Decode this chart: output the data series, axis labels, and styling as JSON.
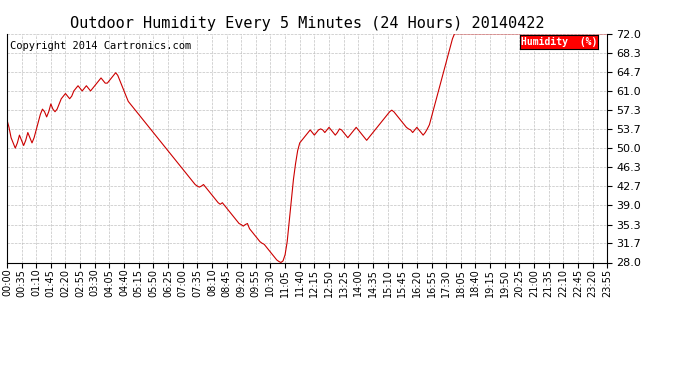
{
  "title": "Outdoor Humidity Every 5 Minutes (24 Hours) 20140422",
  "copyright": "Copyright 2014 Cartronics.com",
  "legend_label": "Humidity  (%)",
  "legend_bg": "#ff0000",
  "legend_text_color": "#ffffff",
  "line_color": "#cc0000",
  "bg_color": "#ffffff",
  "plot_bg_color": "#ffffff",
  "grid_color": "#bbbbbb",
  "ylim": [
    28.0,
    72.0
  ],
  "yticks": [
    28.0,
    31.7,
    35.3,
    39.0,
    42.7,
    46.3,
    50.0,
    53.7,
    57.3,
    61.0,
    64.7,
    68.3,
    72.0
  ],
  "title_fontsize": 11,
  "copyright_fontsize": 7.5,
  "tick_fontsize": 7,
  "humidity_data": [
    55.5,
    54.0,
    52.0,
    51.0,
    50.0,
    51.0,
    52.5,
    51.5,
    50.5,
    51.5,
    53.0,
    52.0,
    51.0,
    52.0,
    53.5,
    55.0,
    56.5,
    57.5,
    57.0,
    56.0,
    57.0,
    58.5,
    57.5,
    57.0,
    57.5,
    58.5,
    59.5,
    60.0,
    60.5,
    60.0,
    59.5,
    60.0,
    61.0,
    61.5,
    62.0,
    61.5,
    61.0,
    61.5,
    62.0,
    61.5,
    61.0,
    61.5,
    62.0,
    62.5,
    63.0,
    63.5,
    63.0,
    62.5,
    62.5,
    63.0,
    63.5,
    64.0,
    64.5,
    64.0,
    63.0,
    62.0,
    61.0,
    60.0,
    59.0,
    58.5,
    58.0,
    57.5,
    57.0,
    56.5,
    56.0,
    55.5,
    55.0,
    54.5,
    54.0,
    53.5,
    53.0,
    52.5,
    52.0,
    51.5,
    51.0,
    50.5,
    50.0,
    49.5,
    49.0,
    48.5,
    48.0,
    47.5,
    47.0,
    46.5,
    46.0,
    45.5,
    45.0,
    44.5,
    44.0,
    43.5,
    43.0,
    42.7,
    42.5,
    42.7,
    43.0,
    42.5,
    42.0,
    41.5,
    41.0,
    40.5,
    40.0,
    39.5,
    39.2,
    39.5,
    39.0,
    38.5,
    38.0,
    37.5,
    37.0,
    36.5,
    36.0,
    35.5,
    35.3,
    35.0,
    35.3,
    35.5,
    34.5,
    34.0,
    33.5,
    33.0,
    32.5,
    32.0,
    31.7,
    31.5,
    31.0,
    30.5,
    30.0,
    29.5,
    29.0,
    28.5,
    28.2,
    28.0,
    28.3,
    29.5,
    32.0,
    36.0,
    40.0,
    44.0,
    47.0,
    49.5,
    51.0,
    51.5,
    52.0,
    52.5,
    53.0,
    53.5,
    53.0,
    52.5,
    53.0,
    53.5,
    53.7,
    53.5,
    53.0,
    53.5,
    54.0,
    53.5,
    53.0,
    52.5,
    53.0,
    53.7,
    53.5,
    53.0,
    52.5,
    52.0,
    52.5,
    53.0,
    53.5,
    54.0,
    53.5,
    53.0,
    52.5,
    52.0,
    51.5,
    52.0,
    52.5,
    53.0,
    53.5,
    54.0,
    54.5,
    55.0,
    55.5,
    56.0,
    56.5,
    57.0,
    57.3,
    57.0,
    56.5,
    56.0,
    55.5,
    55.0,
    54.5,
    54.0,
    53.7,
    53.5,
    53.0,
    53.5,
    54.0,
    53.5,
    53.0,
    52.5,
    53.0,
    53.7,
    54.5,
    56.0,
    57.5,
    59.0,
    60.5,
    62.0,
    63.5,
    65.0,
    66.5,
    68.0,
    69.5,
    71.0,
    72.0,
    72.0,
    72.0,
    72.0,
    72.0,
    72.0,
    72.0,
    72.0,
    72.0,
    72.0,
    72.0,
    72.0,
    72.0,
    72.0,
    72.0,
    72.0,
    72.0,
    72.0,
    72.0,
    72.0,
    72.0,
    72.0,
    72.0,
    72.0,
    72.0,
    72.0,
    72.0,
    72.0,
    72.0,
    72.0,
    72.0,
    72.0,
    72.0,
    72.0,
    72.0,
    72.0,
    72.0,
    72.0,
    72.0,
    72.0,
    72.0,
    72.0,
    72.0,
    72.0,
    72.0,
    72.0,
    72.0,
    72.0,
    72.0,
    72.0,
    72.0,
    72.0,
    72.0,
    72.0,
    72.0,
    72.0,
    72.0,
    72.0,
    72.0,
    72.0,
    72.0,
    72.0,
    72.0,
    72.0,
    72.0,
    72.0,
    72.0,
    72.0,
    72.0,
    72.0,
    72.0,
    72.0,
    72.0,
    72.0
  ]
}
